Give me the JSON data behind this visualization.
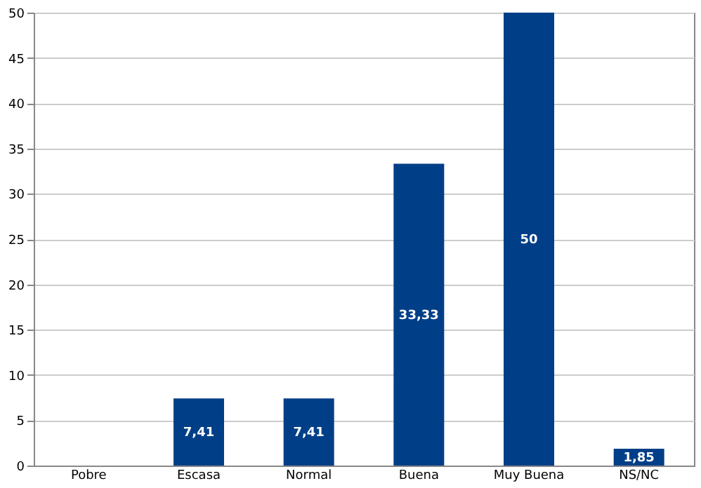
{
  "chart_data": {
    "type": "bar",
    "categories": [
      "Pobre",
      "Escasa",
      "Normal",
      "Buena",
      "Muy Buena",
      "NS/NC"
    ],
    "values": [
      0,
      7.41,
      7.41,
      33.33,
      50,
      1.85
    ],
    "value_labels": [
      null,
      "7,41",
      "7,41",
      "33,33",
      "50",
      "1,85"
    ],
    "color": "#003f87",
    "ylim": [
      0,
      50
    ],
    "yticks": [
      0,
      5,
      10,
      15,
      20,
      25,
      30,
      35,
      40,
      45,
      50
    ],
    "grid": "y"
  }
}
